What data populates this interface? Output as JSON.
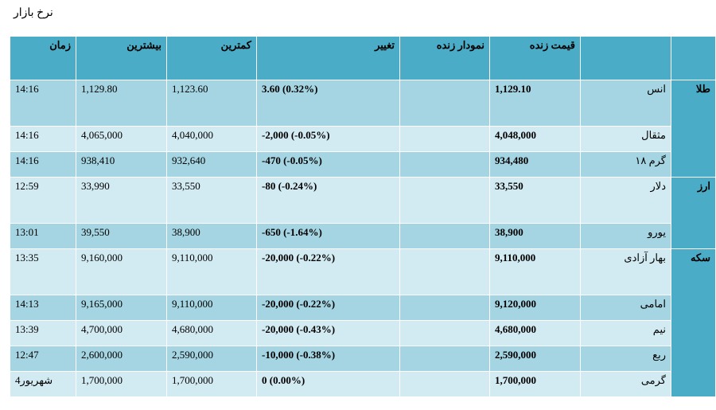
{
  "title": "نرخ بازار",
  "headers": {
    "group": "",
    "item": "",
    "live_price": "قیمت زنده",
    "live_chart": "نمودار زنده",
    "change": "تغییر",
    "low": "کمترین",
    "high": "بیشترین",
    "time": "زمان"
  },
  "groups": [
    {
      "label": "طلا",
      "rows": [
        {
          "item": "انس",
          "price": "1,129.10",
          "chart": "",
          "change": "3.60 (0.32%)",
          "low": "1,123.60",
          "high": "1,129.80",
          "time": "14:16"
        },
        {
          "item": "مثقال",
          "price": "4,048,000",
          "chart": "",
          "change": "-2,000 (-0.05%)",
          "low": "4,040,000",
          "high": "4,065,000",
          "time": "14:16"
        },
        {
          "item": "گرم ۱۸",
          "price": "934,480",
          "chart": "",
          "change": "-470 (-0.05%)",
          "low": "932,640",
          "high": "938,410",
          "time": "14:16"
        }
      ]
    },
    {
      "label": "ارز",
      "rows": [
        {
          "item": "دلار",
          "price": "33,550",
          "chart": "",
          "change": "-80 (-0.24%)",
          "low": "33,550",
          "high": "33,990",
          "time": "12:59"
        },
        {
          "item": "یورو",
          "price": "38,900",
          "chart": "",
          "change": "-650 (-1.64%)",
          "low": "38,900",
          "high": "39,550",
          "time": "13:01"
        }
      ]
    },
    {
      "label": "سکه",
      "rows": [
        {
          "item": "بهار آزادی",
          "price": "9,110,000",
          "chart": "",
          "change": "-20,000 (-0.22%)",
          "low": "9,110,000",
          "high": "9,160,000",
          "time": "13:35"
        },
        {
          "item": "امامی",
          "price": "9,120,000",
          "chart": "",
          "change": "-20,000 (-0.22%)",
          "low": "9,110,000",
          "high": "9,165,000",
          "time": "14:13"
        },
        {
          "item": "نیم",
          "price": "4,680,000",
          "chart": "",
          "change": "-20,000 (-0.43%)",
          "low": "4,680,000",
          "high": "4,700,000",
          "time": "13:39"
        },
        {
          "item": "ربع",
          "price": "2,590,000",
          "chart": "",
          "change": "-10,000 (-0.38%)",
          "low": "2,590,000",
          "high": "2,600,000",
          "time": "12:47"
        },
        {
          "item": "گرمی",
          "price": "1,700,000",
          "chart": "",
          "change": "0 (0.00%)",
          "low": "1,700,000",
          "high": "1,700,000",
          "time": "4شهریور"
        }
      ]
    }
  ]
}
